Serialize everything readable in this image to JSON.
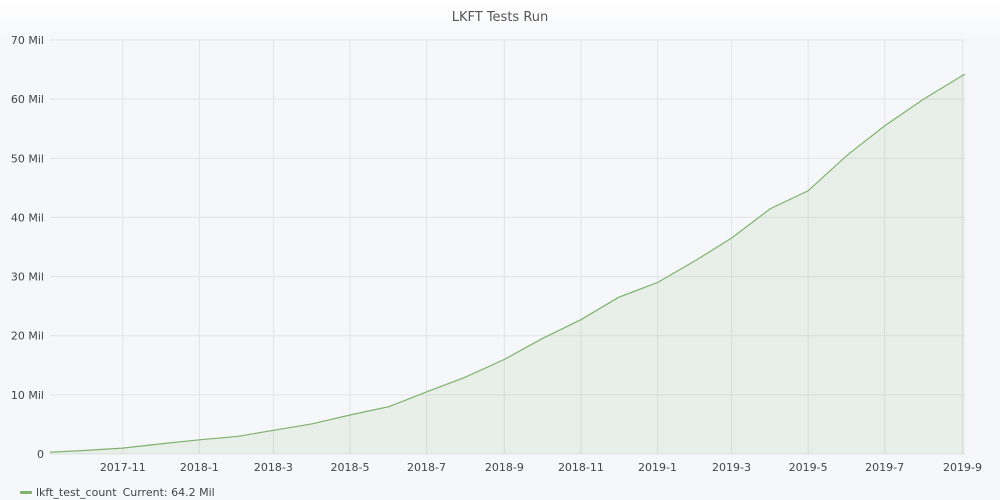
{
  "chart_data": {
    "type": "area",
    "title": "LKFT Tests Run",
    "xlabel": "",
    "ylabel": "",
    "x_tick_labels": [
      "2017-11",
      "2018-1",
      "2018-3",
      "2018-5",
      "2018-7",
      "2018-9",
      "2018-11",
      "2019-1",
      "2019-3",
      "2019-5",
      "2019-7",
      "2019-9"
    ],
    "x_tick_dates": [
      "2017-11-01",
      "2018-01-01",
      "2018-03-01",
      "2018-05-01",
      "2018-07-01",
      "2018-09-01",
      "2018-11-01",
      "2019-01-01",
      "2019-03-01",
      "2019-05-01",
      "2019-07-01",
      "2019-09-01"
    ],
    "y_tick_labels": [
      "0",
      "10 Mil",
      "20 Mil",
      "30 Mil",
      "40 Mil",
      "50 Mil",
      "60 Mil",
      "70 Mil"
    ],
    "y_tick_values": [
      0,
      10000000,
      20000000,
      30000000,
      40000000,
      50000000,
      60000000,
      70000000
    ],
    "xlim": [
      "2017-09-04",
      "2019-09-03"
    ],
    "ylim": [
      0,
      70000000
    ],
    "grid": true,
    "legend_position": "bottom-left",
    "series": [
      {
        "name": "lkft_test_count",
        "color": "#7eb26d",
        "current_label": "Current: 64.2 Mil",
        "points": [
          [
            "2017-09-04",
            300000
          ],
          [
            "2017-10-01",
            600000
          ],
          [
            "2017-11-01",
            1000000
          ],
          [
            "2017-12-01",
            1700000
          ],
          [
            "2018-01-01",
            2400000
          ],
          [
            "2018-02-01",
            3000000
          ],
          [
            "2018-03-01",
            4000000
          ],
          [
            "2018-04-01",
            5100000
          ],
          [
            "2018-05-01",
            6600000
          ],
          [
            "2018-06-01",
            8000000
          ],
          [
            "2018-07-01",
            10500000
          ],
          [
            "2018-08-01",
            13000000
          ],
          [
            "2018-09-01",
            16000000
          ],
          [
            "2018-10-01",
            19500000
          ],
          [
            "2018-11-01",
            22700000
          ],
          [
            "2018-12-01",
            26500000
          ],
          [
            "2019-01-01",
            29000000
          ],
          [
            "2019-02-01",
            32800000
          ],
          [
            "2019-03-01",
            36500000
          ],
          [
            "2019-04-01",
            41500000
          ],
          [
            "2019-05-01",
            44500000
          ],
          [
            "2019-06-01",
            50500000
          ],
          [
            "2019-07-01",
            55500000
          ],
          [
            "2019-08-01",
            60000000
          ],
          [
            "2019-09-01",
            64000000
          ],
          [
            "2019-09-03",
            64200000
          ]
        ]
      }
    ]
  }
}
